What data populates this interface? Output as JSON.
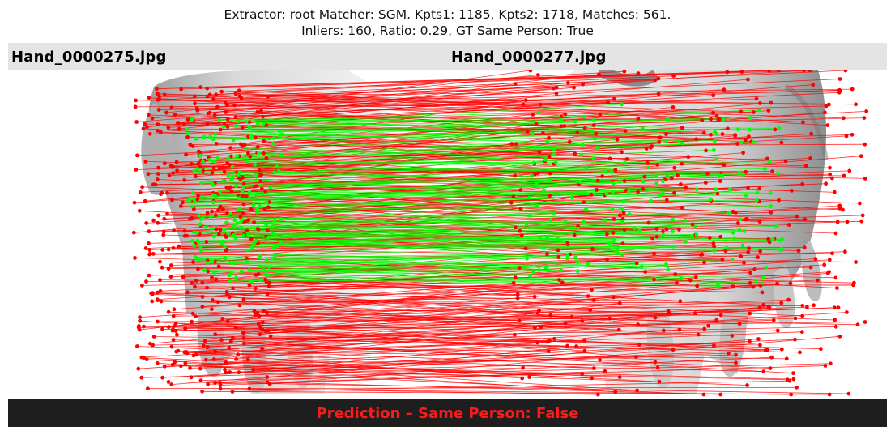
{
  "figure": {
    "title_line1": "Extractor:  root Matcher: SGM. Kpts1: 1185, Kpts2: 1718, Matches: 561.",
    "title_line2": "Inliers: 160, Ratio: 0.29, GT Same Person: True"
  },
  "images": {
    "left_name": "Hand_0000275.jpg",
    "right_name": "Hand_0000277.jpg"
  },
  "stats": {
    "kpts1": 1185,
    "kpts2": 1718,
    "matches": 561,
    "inliers": 160,
    "ratio": 0.29
  },
  "prediction": {
    "text": "Prediction – Same Person: False"
  },
  "colors": {
    "inlier": "#00ff00",
    "outlier": "#ff0000",
    "header_bg": "#e4e4e4",
    "footer_bg": "#1e1e1e",
    "prediction_text": "#ff1a1a"
  }
}
